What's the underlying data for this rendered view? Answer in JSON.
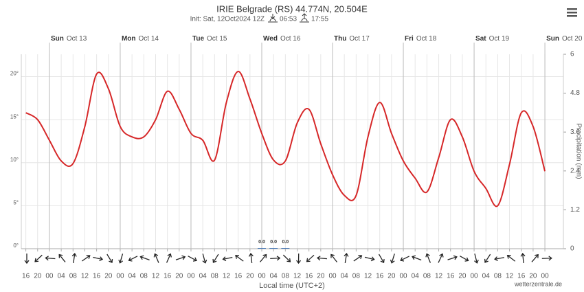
{
  "chart_data": {
    "type": "line",
    "title": "IRIE Belgrade (RS) 44.774N, 20.504E",
    "subtitle": "Init: Sat, 12Oct2024 12Z",
    "sunrise": "06:53",
    "sunset": "17:55",
    "x_label": "Local time (UTC+2)",
    "y2_label": "Precipitation (mm)",
    "credit": "wetterzentrale.de",
    "days": [
      {
        "weekday": "Sun",
        "date": "Oct 13"
      },
      {
        "weekday": "Mon",
        "date": "Oct 14"
      },
      {
        "weekday": "Tue",
        "date": "Oct 15"
      },
      {
        "weekday": "Wed",
        "date": "Oct 16"
      },
      {
        "weekday": "Thu",
        "date": "Oct 17"
      },
      {
        "weekday": "Fri",
        "date": "Oct 18"
      },
      {
        "weekday": "Sat",
        "date": "Oct 19"
      },
      {
        "weekday": "Sun",
        "date": "Oct 20"
      }
    ],
    "categories": [
      "16",
      "20",
      "00",
      "04",
      "08",
      "12",
      "16",
      "20",
      "00",
      "04",
      "08",
      "12",
      "16",
      "20",
      "00",
      "04",
      "08",
      "12",
      "16",
      "20",
      "00",
      "04",
      "08",
      "12",
      "16",
      "20",
      "00",
      "04",
      "08",
      "12",
      "16",
      "20",
      "00",
      "04",
      "08",
      "12",
      "16",
      "20",
      "00",
      "04",
      "08",
      "12",
      "16",
      "20",
      "00"
    ],
    "series": [
      {
        "name": "Temperature",
        "color": "#d62728",
        "values": [
          15.8,
          15.0,
          12.6,
          10.2,
          9.9,
          14.2,
          20.3,
          18.6,
          14.2,
          13.0,
          13.0,
          15.0,
          18.3,
          16.2,
          13.4,
          12.6,
          10.3,
          17.0,
          20.6,
          17.4,
          13.4,
          10.3,
          10.2,
          14.6,
          16.2,
          12.2,
          8.6,
          6.2,
          6.2,
          13.0,
          17.0,
          13.4,
          10.2,
          8.2,
          6.6,
          10.6,
          15.0,
          13.0,
          9.0,
          7.0,
          5.0,
          9.8,
          15.8,
          14.2,
          9.0
        ]
      },
      {
        "name": "Precipitation",
        "axis": "y2",
        "color": "#4a7ab8",
        "values": [
          null,
          null,
          null,
          null,
          null,
          null,
          null,
          null,
          null,
          null,
          null,
          null,
          null,
          null,
          null,
          null,
          null,
          null,
          null,
          null,
          0,
          0,
          0,
          null,
          null,
          null,
          null,
          null,
          null,
          null,
          null,
          null,
          null,
          null,
          null,
          null,
          null,
          null,
          null,
          null,
          null,
          null,
          null,
          null,
          null
        ],
        "value_labels": [
          null,
          null,
          null,
          null,
          null,
          null,
          null,
          null,
          null,
          null,
          null,
          null,
          null,
          null,
          null,
          null,
          null,
          null,
          null,
          null,
          "0.0",
          "0.0",
          "0.0",
          null,
          null,
          null,
          null,
          null,
          null,
          null,
          null,
          null,
          null,
          null,
          null,
          null,
          null,
          null,
          null,
          null,
          null,
          null,
          null,
          null,
          null
        ]
      }
    ],
    "ylim": [
      0,
      22.6
    ],
    "yticks": [
      {
        "value": 0,
        "label": "0°"
      },
      {
        "value": 5,
        "label": "5°"
      },
      {
        "value": 10,
        "label": "10°"
      },
      {
        "value": 15,
        "label": "15°"
      },
      {
        "value": 20,
        "label": "20°"
      }
    ],
    "y2lim": [
      0,
      6
    ],
    "y2ticks": [
      0,
      1.2,
      2.4,
      3.6,
      4.8,
      6
    ],
    "grid": true
  }
}
